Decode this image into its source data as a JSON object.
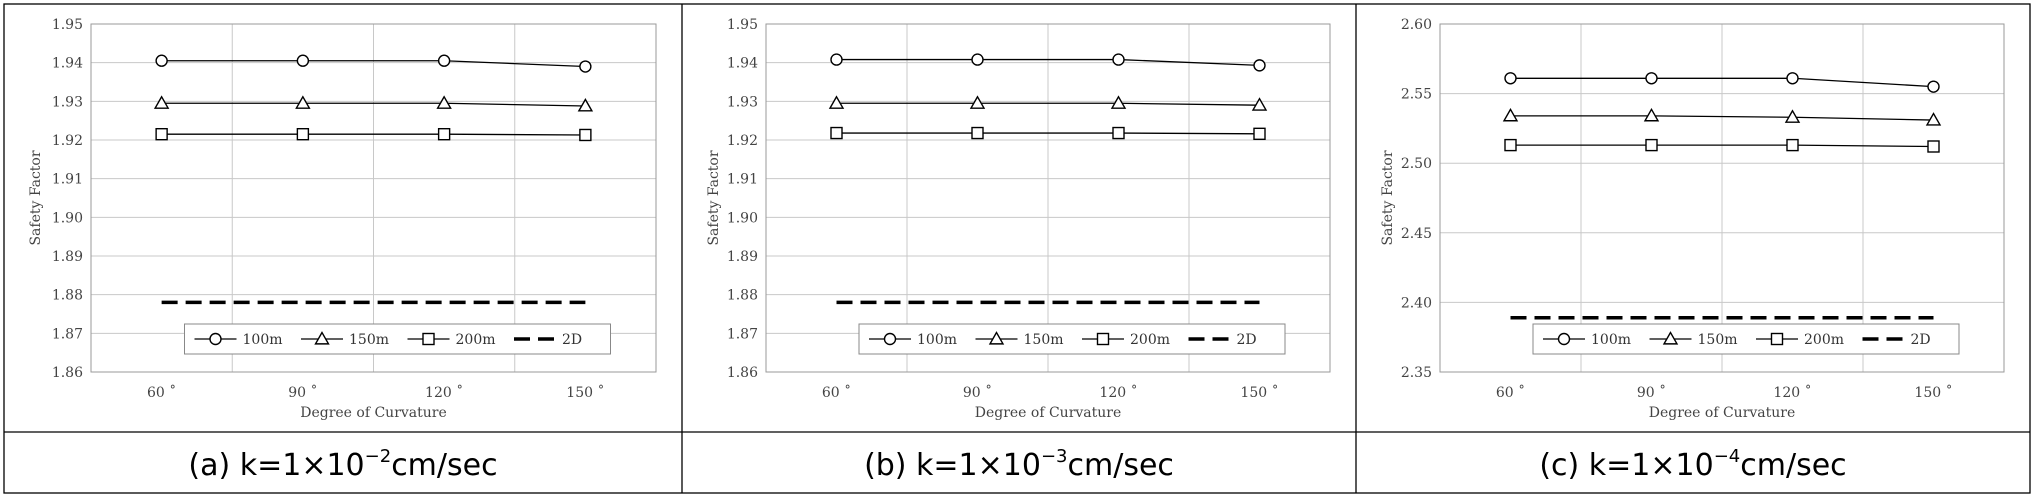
{
  "chart_data": [
    {
      "type": "line",
      "caption": {
        "prefix": "(a)  k=1×10",
        "exponent": "−2",
        "suffix": "cm/sec"
      },
      "xlabel": "Degree of Curvature",
      "ylabel": "Safety Factor",
      "categories": [
        "60 ˚",
        "90 ˚",
        "120 ˚",
        "150 ˚"
      ],
      "ylim": [
        1.86,
        1.95
      ],
      "yticks": [
        "1.86",
        "1.87",
        "1.88",
        "1.89",
        "1.90",
        "1.91",
        "1.92",
        "1.93",
        "1.94",
        "1.95"
      ],
      "grid": true,
      "legend_position": "bottom",
      "series": [
        {
          "name": "100m",
          "marker": "circle",
          "values": [
            1.9405,
            1.9405,
            1.9405,
            1.939
          ]
        },
        {
          "name": "150m",
          "marker": "triangle",
          "values": [
            1.9295,
            1.9295,
            1.9295,
            1.9288
          ]
        },
        {
          "name": "200m",
          "marker": "square",
          "values": [
            1.9215,
            1.9215,
            1.9215,
            1.9213
          ]
        },
        {
          "name": "2D",
          "marker": "dashed",
          "values": [
            1.878,
            1.878,
            1.878,
            1.878
          ]
        }
      ]
    },
    {
      "type": "line",
      "caption": {
        "prefix": "(b)  k=1×10",
        "exponent": "−3",
        "suffix": "cm/sec"
      },
      "xlabel": "Degree of Curvature",
      "ylabel": "Safety Factor",
      "categories": [
        "60 ˚",
        "90 ˚",
        "120 ˚",
        "150 ˚"
      ],
      "ylim": [
        1.86,
        1.95
      ],
      "yticks": [
        "1.86",
        "1.87",
        "1.88",
        "1.89",
        "1.90",
        "1.91",
        "1.92",
        "1.93",
        "1.94",
        "1.95"
      ],
      "grid": true,
      "legend_position": "bottom",
      "series": [
        {
          "name": "100m",
          "marker": "circle",
          "values": [
            1.9408,
            1.9408,
            1.9408,
            1.9393
          ]
        },
        {
          "name": "150m",
          "marker": "triangle",
          "values": [
            1.9295,
            1.9295,
            1.9295,
            1.929
          ]
        },
        {
          "name": "200m",
          "marker": "square",
          "values": [
            1.9218,
            1.9218,
            1.9218,
            1.9216
          ]
        },
        {
          "name": "2D",
          "marker": "dashed",
          "values": [
            1.878,
            1.878,
            1.878,
            1.878
          ]
        }
      ]
    },
    {
      "type": "line",
      "caption": {
        "prefix": "(c)  k=1×10",
        "exponent": "−4",
        "suffix": "cm/sec"
      },
      "xlabel": "Degree of Curvature",
      "ylabel": "Safety Factor",
      "categories": [
        "60 ˚",
        "90 ˚",
        "120 ˚",
        "150 ˚"
      ],
      "ylim": [
        2.35,
        2.6
      ],
      "yticks": [
        "2.35",
        "2.40",
        "2.45",
        "2.50",
        "2.55",
        "2.60"
      ],
      "grid": true,
      "legend_position": "bottom",
      "series": [
        {
          "name": "100m",
          "marker": "circle",
          "values": [
            2.561,
            2.561,
            2.561,
            2.555
          ]
        },
        {
          "name": "150m",
          "marker": "triangle",
          "values": [
            2.534,
            2.534,
            2.533,
            2.531
          ]
        },
        {
          "name": "200m",
          "marker": "square",
          "values": [
            2.513,
            2.513,
            2.513,
            2.512
          ]
        },
        {
          "name": "2D",
          "marker": "dashed",
          "values": [
            2.389,
            2.389,
            2.389,
            2.389
          ]
        }
      ]
    }
  ]
}
